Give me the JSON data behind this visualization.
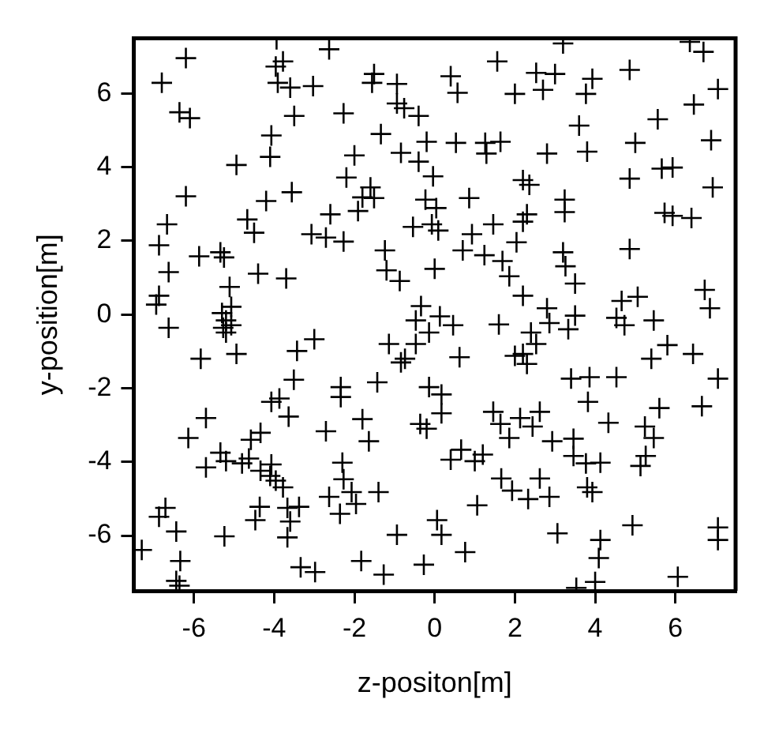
{
  "chart_data": {
    "type": "scatter",
    "xlabel": "z-positon[m]",
    "ylabel": "y-position[m]",
    "xlim": [
      -7.5,
      7.5
    ],
    "ylim": [
      -7.5,
      7.5
    ],
    "xticks": [
      -6,
      -4,
      -2,
      0,
      2,
      4,
      6
    ],
    "yticks": [
      -6,
      -4,
      -2,
      0,
      2,
      4,
      6
    ],
    "grid": false,
    "legend": false,
    "marker": "cross",
    "series": [
      {
        "color": "#000000",
        "x": [
          -6.2,
          -3.94,
          -3.96,
          -3.78,
          -2.63,
          -6.8,
          -3.91,
          -3.6,
          -3.03,
          -1.51,
          -1.56,
          -0.94,
          -6.36,
          -6.1,
          -3.5,
          -2.27,
          -0.94,
          -0.76,
          -0.4,
          -4.07,
          -1.34,
          -0.2,
          -4.94,
          -4.1,
          -2.0,
          -0.84,
          -0.4,
          -2.2,
          -1.6,
          -1.8,
          -1.51,
          -0.23,
          -6.2,
          -4.2,
          -3.56,
          -6.67,
          -4.67,
          -4.5,
          -2.6,
          -1.91,
          -3.07,
          -2.71,
          -2.27,
          -0.54,
          -6.87,
          -5.87,
          -5.34,
          -5.25,
          -1.24,
          -1.2,
          -0.87,
          -6.63,
          -4.4,
          -3.7,
          -5.11,
          -6.87,
          -6.94,
          -5.07,
          -5.3,
          -0.34,
          3.2,
          6.36,
          6.7,
          1.56,
          0.4,
          2.53,
          3.0,
          3.93,
          4.86,
          0.57,
          2.0,
          2.7,
          3.77,
          7.06,
          6.46,
          3.6,
          5.56,
          0.53,
          1.26,
          1.64,
          1.29,
          2.8,
          3.8,
          5.0,
          6.89,
          -0.04,
          2.2,
          2.36,
          4.86,
          5.66,
          5.93,
          6.93,
          0.04,
          0.86,
          3.24,
          3.24,
          2.3,
          2.2,
          -0.07,
          0.09,
          0.93,
          1.46,
          2.04,
          5.73,
          5.93,
          6.4,
          4.86,
          0.7,
          1.24,
          1.69,
          0,
          3.2,
          3.26,
          1.86,
          3.5,
          2.2,
          2.8,
          4.66,
          5.06,
          6.73,
          6.86,
          -5.2,
          -5.27,
          -5.07,
          -5.2,
          -6.63,
          -0.47,
          -0.14,
          -0.47,
          -1.14,
          -0.74,
          -0.84,
          -3.0,
          -3.43,
          -4.94,
          -5.83,
          -3.51,
          -2.34,
          -2.34,
          -1.43,
          -0.14,
          -4.07,
          -3.87,
          -3.64,
          -5.7,
          -6.14,
          -4.34,
          -4.58,
          -5.34,
          -5.2,
          -5.7,
          -4.8,
          -4.63,
          -4.07,
          -4.34,
          -4.1,
          -3.96,
          -3.78,
          -2.71,
          -1.8,
          -1.64,
          -0.36,
          -0.2,
          -2.3,
          -2.27,
          -2.63,
          -2.07,
          -1.96,
          -2.36,
          -1.4,
          -6.71,
          -6.87,
          -4.36,
          -4.47,
          -3.67,
          -3.38,
          -3.6,
          -3.67,
          -6.44,
          -5.24,
          -7.3,
          -6.34,
          -6.44,
          -6.36,
          -3.34,
          -2.98,
          -1.83,
          -1.27,
          -0.27,
          -0.94,
          0.13,
          0.46,
          1.6,
          2.86,
          3.5,
          3.33,
          4.53,
          4.73,
          5.46,
          2.4,
          2.53,
          2.2,
          2.0,
          2.3,
          0.62,
          5.8,
          5.4,
          6.44,
          3.4,
          3.86,
          4.53,
          7.06,
          0.17,
          3.82,
          5.6,
          6.66,
          0.17,
          1.46,
          1.64,
          1.86,
          2.13,
          2.62,
          2.44,
          4.33,
          5.24,
          5.46,
          2.93,
          3.46,
          3.46,
          3.77,
          4.13,
          0.4,
          0.66,
          1.0,
          1.2,
          5.26,
          5.13,
          1.66,
          1.93,
          2.62,
          2.33,
          2.86,
          3.8,
          3.93,
          1.06,
          0.06,
          0.17,
          4.93,
          3.06,
          4.13,
          4.09,
          7.06,
          7.06,
          0.76,
          3.53,
          4.0,
          6.06
        ],
        "values": [
          6.96,
          7.47,
          6.73,
          6.87,
          7.2,
          6.29,
          6.29,
          6.16,
          6.2,
          6.53,
          6.29,
          6.26,
          5.49,
          5.33,
          5.39,
          5.46,
          5.73,
          5.6,
          5.39,
          4.86,
          4.9,
          4.69,
          4.06,
          4.28,
          4.32,
          4.39,
          4.15,
          3.72,
          3.45,
          3.18,
          3.16,
          3.12,
          3.21,
          3.08,
          3.32,
          2.45,
          2.58,
          2.22,
          2.72,
          2.81,
          2.18,
          2.09,
          1.98,
          2.38,
          1.88,
          1.58,
          1.69,
          1.55,
          1.74,
          1.2,
          0.91,
          1.15,
          1.11,
          0.98,
          0.75,
          0.51,
          0.27,
          0.21,
          0.04,
          0.23,
          7.36,
          7.4,
          7.13,
          6.87,
          6.47,
          6.56,
          6.53,
          6.4,
          6.64,
          6.02,
          5.99,
          6.1,
          5.99,
          6.12,
          5.7,
          5.13,
          5.3,
          4.66,
          4.66,
          4.69,
          4.37,
          4.37,
          4.42,
          4.66,
          4.73,
          3.75,
          3.65,
          3.52,
          3.69,
          3.96,
          3.99,
          3.45,
          2.89,
          3.16,
          3.12,
          2.78,
          2.72,
          2.52,
          2.45,
          2.28,
          2.18,
          2.45,
          1.96,
          2.76,
          2.68,
          2.62,
          1.78,
          1.74,
          1.61,
          1.45,
          1.24,
          1.69,
          1.31,
          1.04,
          0.84,
          0.51,
          0.17,
          0.37,
          0.48,
          0.67,
          0.17,
          -0.16,
          -0.36,
          -0.29,
          -0.49,
          -0.36,
          -0.16,
          -0.49,
          -0.8,
          -0.8,
          -1.2,
          -1.3,
          -0.67,
          -0.99,
          -1.07,
          -1.2,
          -1.77,
          -1.97,
          -2.24,
          -1.84,
          -1.97,
          -2.37,
          -2.28,
          -2.77,
          -2.81,
          -3.35,
          -3.21,
          -3.4,
          -3.75,
          -3.98,
          -4.15,
          -4.04,
          -3.91,
          -4.07,
          -4.24,
          -4.38,
          -4.51,
          -4.69,
          -3.17,
          -2.84,
          -3.44,
          -2.97,
          -3.1,
          -4.02,
          -4.47,
          -4.95,
          -4.82,
          -5.14,
          -5.41,
          -4.82,
          -5.25,
          -5.49,
          -5.22,
          -5.58,
          -5.25,
          -5.22,
          -5.62,
          -6.05,
          -5.89,
          -6.02,
          -6.39,
          -6.69,
          -7.23,
          -7.36,
          -6.86,
          -6.99,
          -6.69,
          -7.06,
          -6.79,
          -5.98,
          -0.05,
          -0.29,
          -0.27,
          -0.23,
          -0.03,
          -0.4,
          -0.09,
          -0.29,
          -0.16,
          -0.49,
          -0.8,
          -1.07,
          -1.12,
          -1.34,
          -1.16,
          -0.83,
          -1.2,
          -1.07,
          -1.74,
          -1.7,
          -1.7,
          -1.74,
          -2.17,
          -2.37,
          -2.54,
          -2.49,
          -2.68,
          -2.64,
          -2.97,
          -3.35,
          -2.81,
          -2.64,
          -3.04,
          -2.94,
          -3.04,
          -3.35,
          -3.44,
          -3.37,
          -3.84,
          -4.04,
          -4.02,
          -3.94,
          -3.67,
          -3.98,
          -3.8,
          -3.84,
          -4.11,
          -4.45,
          -4.78,
          -4.45,
          -5.01,
          -4.95,
          -4.69,
          -4.82,
          -5.18,
          -5.58,
          -5.98,
          -5.72,
          -5.94,
          -6.12,
          -6.61,
          -5.78,
          -6.12,
          -6.45,
          -7.42,
          -7.26,
          -7.12
        ]
      }
    ]
  }
}
